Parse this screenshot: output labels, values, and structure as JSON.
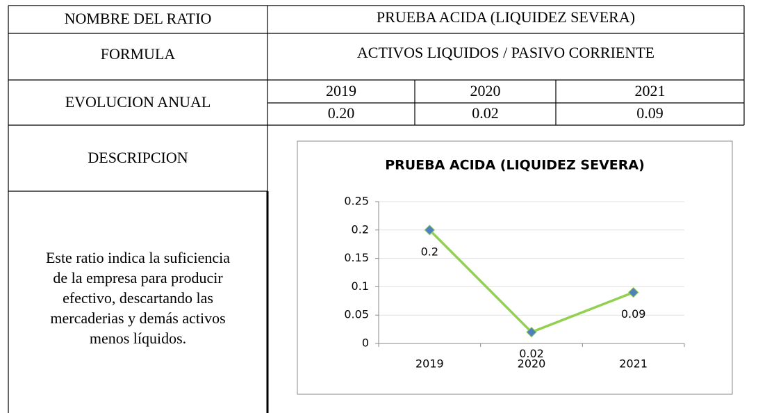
{
  "name_label": "NOMBRE DEL RATIO",
  "name": "PRUEBA ACIDA (LIQUIDEZ SEVERA)",
  "formula_label": "FORMULA",
  "formula": "ACTIVOS LIQUIDOS / PASIVO CORRIENTE",
  "evolution_label": "EVOLUCION ANUAL",
  "years": [
    "2019",
    "2020",
    "2021"
  ],
  "year_values": [
    "0.20",
    "0.02",
    "0.09"
  ],
  "description_label": "DESCRIPCION",
  "description": [
    "Este ratio indica la suficiencia",
    "de la empresa para producir",
    "efectivo, descartando las",
    "mercaderias y demás activos",
    "menos líquidos."
  ],
  "chart": {
    "type": "line",
    "title": "PRUEBA ACIDA (LIQUIDEZ SEVERA)",
    "categories": [
      "2019",
      "2020",
      "2021"
    ],
    "values": [
      0.2,
      0.02,
      0.09
    ],
    "value_labels": [
      "0.2",
      "0.02",
      "0.09"
    ],
    "color": "#92d050",
    "marker_color": "#4f81bd",
    "ylim": [
      0,
      0.25
    ],
    "yticks": [
      0,
      0.05,
      0.1,
      0.15,
      0.2,
      0.25
    ],
    "grid": true
  }
}
